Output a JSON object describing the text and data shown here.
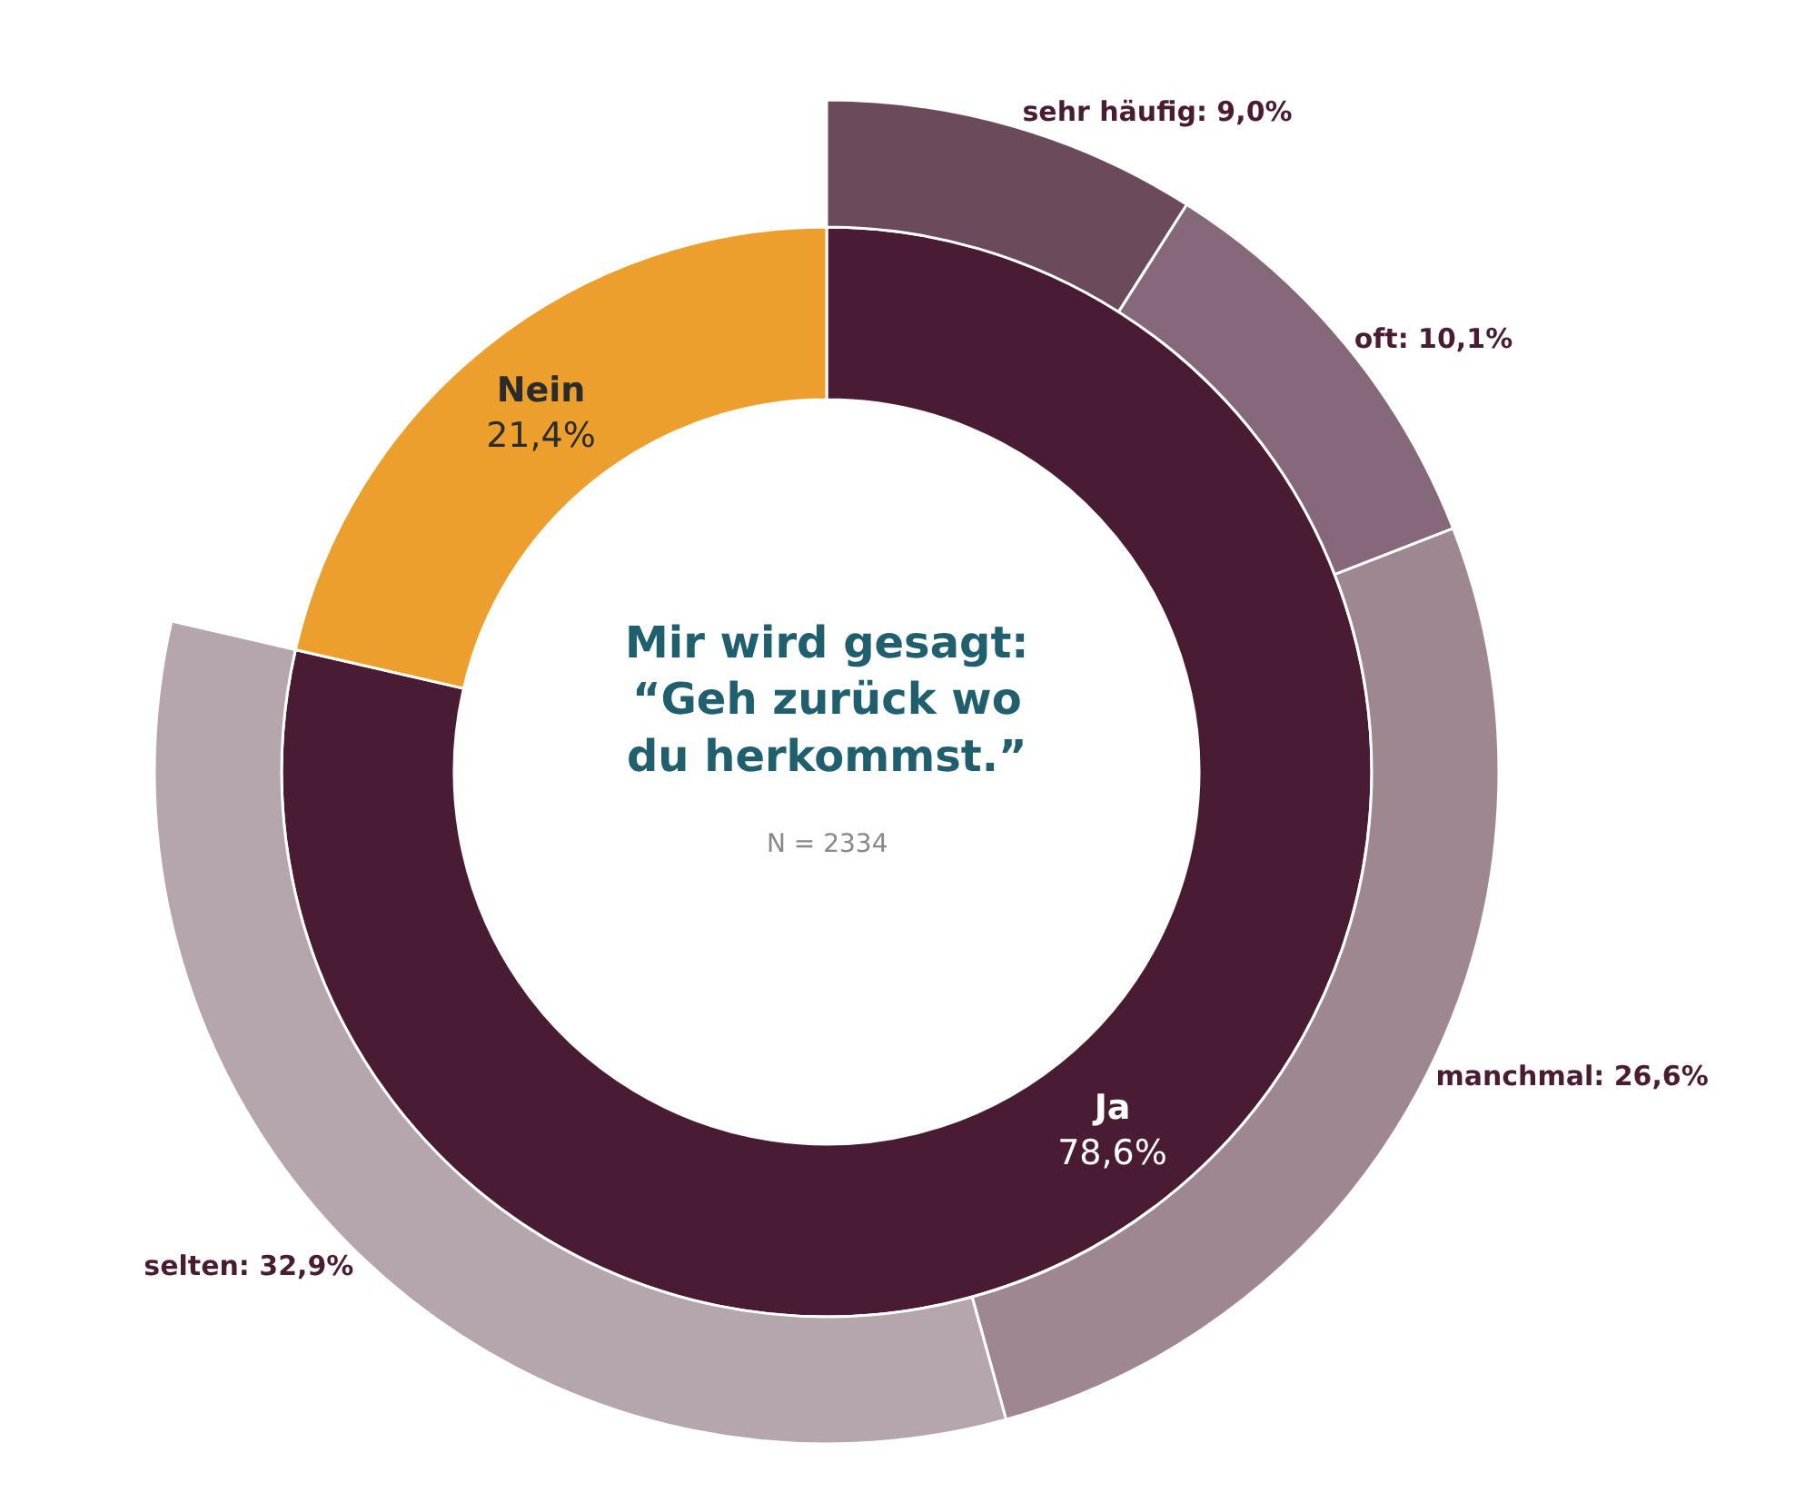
{
  "chart_data": {
    "type": "donut",
    "title": "Mir wird gesagt:\n“Geh zurück wo\ndu herkommst.”",
    "annotations": [
      "N = 2334"
    ],
    "legend": false,
    "categories": [
      "Ja",
      "Nein",
      "sehr häufig",
      "oft",
      "manchmal",
      "selten"
    ],
    "series": [
      {
        "values": [
          78.6,
          21.4,
          null,
          null,
          null,
          null
        ],
        "colors": [
          "#4a1c34",
          "#ec9f2c",
          null,
          null,
          null,
          null
        ],
        "value_labels": [
          "78,6%",
          "21,4%",
          null,
          null,
          null,
          null
        ]
      },
      {
        "values": [
          null,
          null,
          9.0,
          10.1,
          26.6,
          32.9
        ],
        "colors": [
          null,
          null,
          "#6b4a5c",
          "#85687a",
          "#9e8791",
          "#b5a6ad"
        ],
        "value_labels": [
          null,
          null,
          ": 9,0%",
          ": 10,1%",
          ": 26,6%",
          ": 32,9%"
        ]
      }
    ]
  }
}
